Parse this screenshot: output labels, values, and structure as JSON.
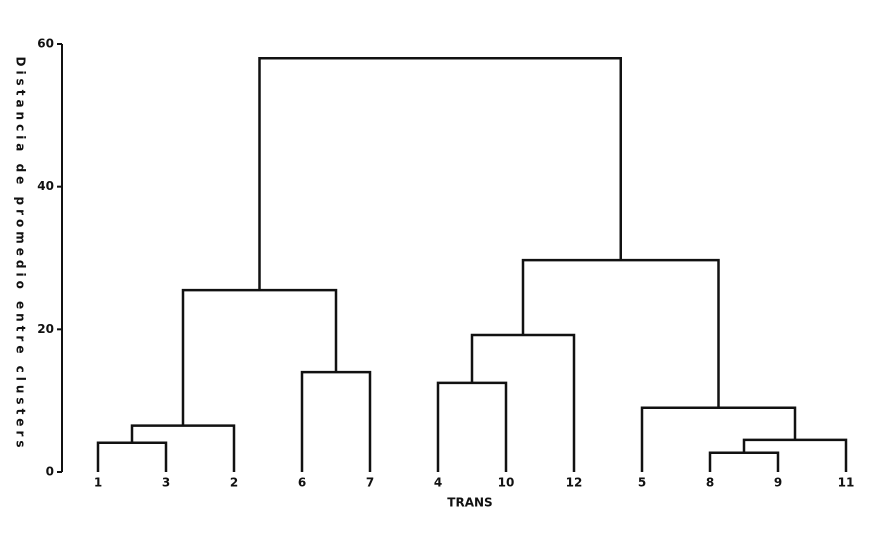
{
  "chart_data": {
    "type": "dendrogram",
    "y_label": "Distancia de promedio entre clusters",
    "x_label": "TRANS",
    "leaves": [
      "1",
      "3",
      "2",
      "6",
      "7",
      "4",
      "10",
      "12",
      "5",
      "8",
      "9",
      "11"
    ],
    "merges": [
      {
        "children": [
          0,
          1
        ],
        "height": 4.1
      },
      {
        "children": [
          12,
          2
        ],
        "height": 6.5
      },
      {
        "children": [
          3,
          4
        ],
        "height": 14.0
      },
      {
        "children": [
          13,
          14
        ],
        "height": 25.5
      },
      {
        "children": [
          5,
          6
        ],
        "height": 12.5
      },
      {
        "children": [
          16,
          7
        ],
        "height": 19.2
      },
      {
        "children": [
          9,
          10
        ],
        "height": 2.7
      },
      {
        "children": [
          18,
          11
        ],
        "height": 4.5
      },
      {
        "children": [
          8,
          19
        ],
        "height": 9.0
      },
      {
        "children": [
          17,
          20
        ],
        "height": 29.7
      },
      {
        "children": [
          15,
          21
        ],
        "height": 58.0
      }
    ],
    "ylim": [
      0,
      60
    ],
    "yticks": [
      0,
      20,
      40,
      60
    ],
    "color": "#111111"
  }
}
